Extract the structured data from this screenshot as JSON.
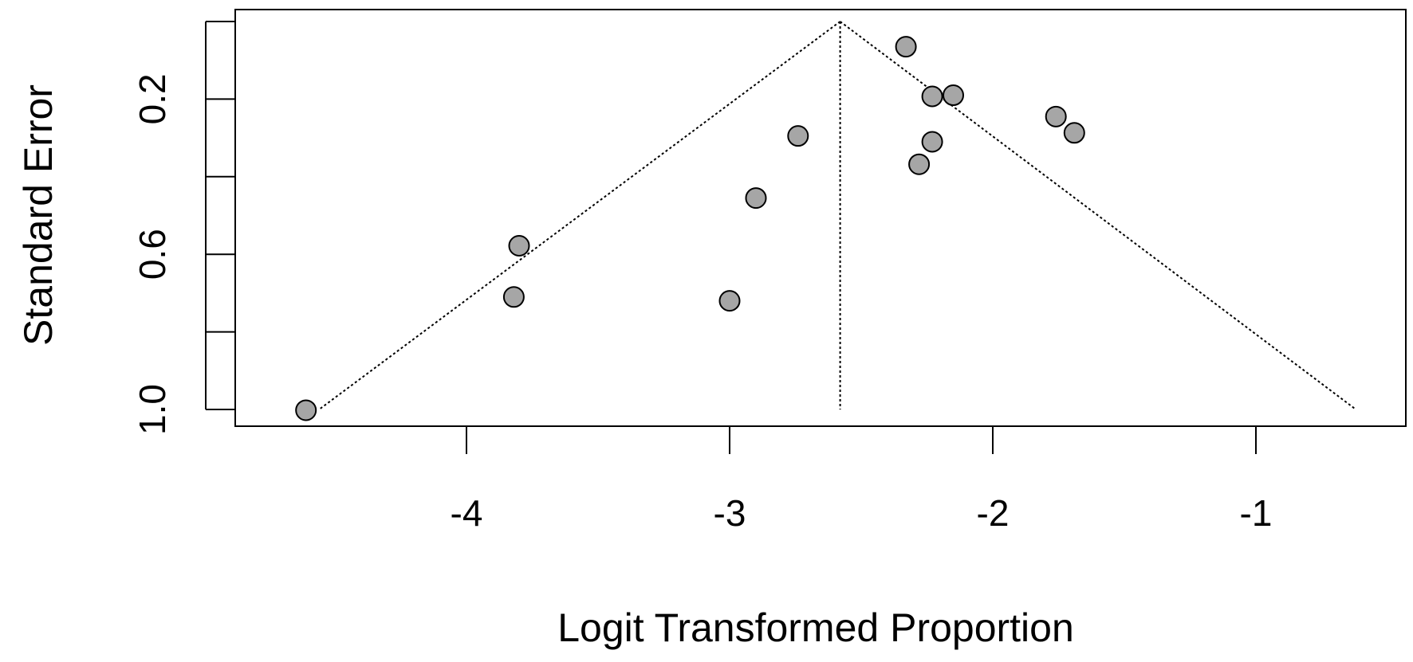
{
  "chart_data": {
    "type": "scatter",
    "subtype": "funnel",
    "title": "",
    "xlabel": "Logit Transformed Proportion",
    "ylabel": "Standard Error",
    "xlim": [
      -4.9,
      -0.52
    ],
    "ylim": [
      1.0,
      0.0
    ],
    "y_reversed": true,
    "grid": false,
    "x_ticks": [
      -4,
      -3,
      -2,
      -1
    ],
    "x_tick_labels": [
      "-4",
      "-3",
      "-2",
      "-1"
    ],
    "y_ticks": [
      0.0,
      0.2,
      0.4,
      0.6,
      0.8,
      1.0
    ],
    "y_tick_labels": [
      "",
      "0.2",
      "",
      "0.6",
      "",
      "1.0"
    ],
    "pooled_estimate": -2.58,
    "funnel_limits": {
      "apex": {
        "x": -2.58,
        "y": 0.0
      },
      "left_base": {
        "x": -4.56,
        "y": 1.0
      },
      "right_base": {
        "x": -0.62,
        "y": 1.0
      }
    },
    "point_fill": "#a6a6a6",
    "points": [
      {
        "x": -2.33,
        "y": 0.065
      },
      {
        "x": -2.23,
        "y": 0.193
      },
      {
        "x": -2.15,
        "y": 0.19
      },
      {
        "x": -1.76,
        "y": 0.245
      },
      {
        "x": -1.69,
        "y": 0.287
      },
      {
        "x": -2.23,
        "y": 0.31
      },
      {
        "x": -2.28,
        "y": 0.368
      },
      {
        "x": -2.74,
        "y": 0.295
      },
      {
        "x": -2.9,
        "y": 0.455
      },
      {
        "x": -3.8,
        "y": 0.578
      },
      {
        "x": -3.82,
        "y": 0.71
      },
      {
        "x": -3.0,
        "y": 0.72
      },
      {
        "x": -4.61,
        "y": 1.002
      }
    ]
  }
}
